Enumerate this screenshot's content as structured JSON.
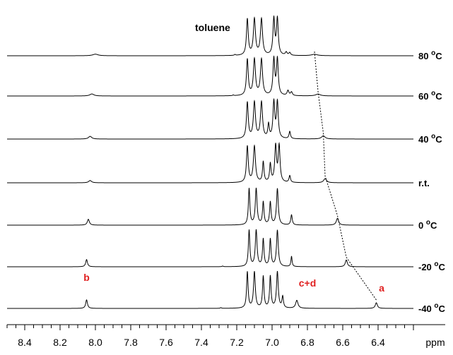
{
  "chart_data": {
    "type": "line",
    "xlabel": "ppm",
    "x_reversed": true,
    "xlim": [
      8.5,
      6.2
    ],
    "x_ticks": [
      "8.4",
      "8.2",
      "8.0",
      "7.8",
      "7.6",
      "7.4",
      "7.2",
      "7.0",
      "6.8",
      "6.6",
      "6.4"
    ],
    "grid": false,
    "solvent_annotation": "toluene",
    "peak_labels": [
      {
        "text": "b",
        "ppm": 8.05,
        "color": "#e02020"
      },
      {
        "text": "c+d",
        "ppm": 6.8,
        "color": "#e02020"
      },
      {
        "text": "a",
        "ppm": 6.38,
        "color": "#e02020"
      }
    ],
    "peak_colors": {
      "labels": "#e02020",
      "traces": "#000000"
    },
    "series": [
      {
        "name": "80 °C",
        "label_base": "80 ",
        "label_sup": "o",
        "label_unit": "C",
        "peaks": [
          [
            8.0,
            0.07,
            0.018
          ],
          [
            7.21,
            0.04,
            0.004
          ],
          [
            7.14,
            1.6,
            0.006
          ],
          [
            7.1,
            1.6,
            0.007
          ],
          [
            7.06,
            1.6,
            0.007
          ],
          [
            6.99,
            1.6,
            0.006
          ],
          [
            6.97,
            1.6,
            0.006
          ],
          [
            6.92,
            0.14,
            0.006
          ],
          [
            6.9,
            0.12,
            0.006
          ],
          [
            6.76,
            0.06,
            0.02
          ]
        ]
      },
      {
        "name": "60 °C",
        "label_base": "60 ",
        "label_sup": "o",
        "label_unit": "C",
        "peaks": [
          [
            8.02,
            0.09,
            0.014
          ],
          [
            7.22,
            0.03,
            0.004
          ],
          [
            7.14,
            1.6,
            0.006
          ],
          [
            7.1,
            1.6,
            0.007
          ],
          [
            7.06,
            1.6,
            0.007
          ],
          [
            6.99,
            1.6,
            0.006
          ],
          [
            6.97,
            1.6,
            0.006
          ],
          [
            6.91,
            0.22,
            0.006
          ],
          [
            6.89,
            0.16,
            0.006
          ],
          [
            6.74,
            0.08,
            0.016
          ]
        ]
      },
      {
        "name": "40 °C",
        "label_base": "40 ",
        "label_sup": "o",
        "label_unit": "C",
        "peaks": [
          [
            8.03,
            0.12,
            0.011
          ],
          [
            7.14,
            1.6,
            0.006
          ],
          [
            7.1,
            1.6,
            0.007
          ],
          [
            7.06,
            1.6,
            0.007
          ],
          [
            7.02,
            0.6,
            0.005
          ],
          [
            6.99,
            1.6,
            0.006
          ],
          [
            6.97,
            1.6,
            0.006
          ],
          [
            6.9,
            0.32,
            0.005
          ],
          [
            6.71,
            0.14,
            0.012
          ]
        ]
      },
      {
        "name": "r.t.",
        "label_base": "r.t.",
        "label_sup": "",
        "label_unit": "",
        "peaks": [
          [
            8.03,
            0.1,
            0.01
          ],
          [
            7.14,
            1.6,
            0.006
          ],
          [
            7.1,
            1.6,
            0.007
          ],
          [
            7.05,
            0.9,
            0.005
          ],
          [
            7.01,
            0.8,
            0.005
          ],
          [
            6.98,
            1.6,
            0.006
          ],
          [
            6.96,
            1.6,
            0.006
          ],
          [
            6.9,
            0.3,
            0.005
          ],
          [
            6.7,
            0.18,
            0.01
          ]
        ]
      },
      {
        "name": "0 °C",
        "label_base": "0 ",
        "label_sup": "o",
        "label_unit": "C",
        "peaks": [
          [
            8.04,
            0.26,
            0.007
          ],
          [
            7.13,
            1.6,
            0.005
          ],
          [
            7.09,
            1.6,
            0.006
          ],
          [
            7.05,
            1.0,
            0.005
          ],
          [
            7.01,
            1.0,
            0.005
          ],
          [
            6.97,
            1.6,
            0.006
          ],
          [
            6.89,
            0.45,
            0.005
          ],
          [
            6.63,
            0.3,
            0.008
          ]
        ]
      },
      {
        "name": "-20 °C",
        "label_base": "-20 ",
        "label_sup": "o",
        "label_unit": "C",
        "peaks": [
          [
            8.05,
            0.32,
            0.006
          ],
          [
            7.28,
            0.03,
            0.004
          ],
          [
            7.13,
            1.6,
            0.005
          ],
          [
            7.09,
            1.6,
            0.006
          ],
          [
            7.05,
            1.2,
            0.005
          ],
          [
            7.01,
            1.2,
            0.005
          ],
          [
            6.97,
            1.6,
            0.006
          ],
          [
            6.89,
            0.45,
            0.004
          ],
          [
            6.58,
            0.3,
            0.007
          ]
        ]
      },
      {
        "name": "-40 °C",
        "label_base": "-40 ",
        "label_sup": "o",
        "label_unit": "C",
        "peaks": [
          [
            8.05,
            0.38,
            0.006
          ],
          [
            7.29,
            0.03,
            0.004
          ],
          [
            7.14,
            1.6,
            0.005
          ],
          [
            7.1,
            1.6,
            0.006
          ],
          [
            7.05,
            1.4,
            0.005
          ],
          [
            7.01,
            1.4,
            0.005
          ],
          [
            6.97,
            1.6,
            0.006
          ],
          [
            6.94,
            0.5,
            0.005
          ],
          [
            6.86,
            0.35,
            0.008
          ],
          [
            6.41,
            0.25,
            0.007
          ]
        ]
      }
    ]
  }
}
